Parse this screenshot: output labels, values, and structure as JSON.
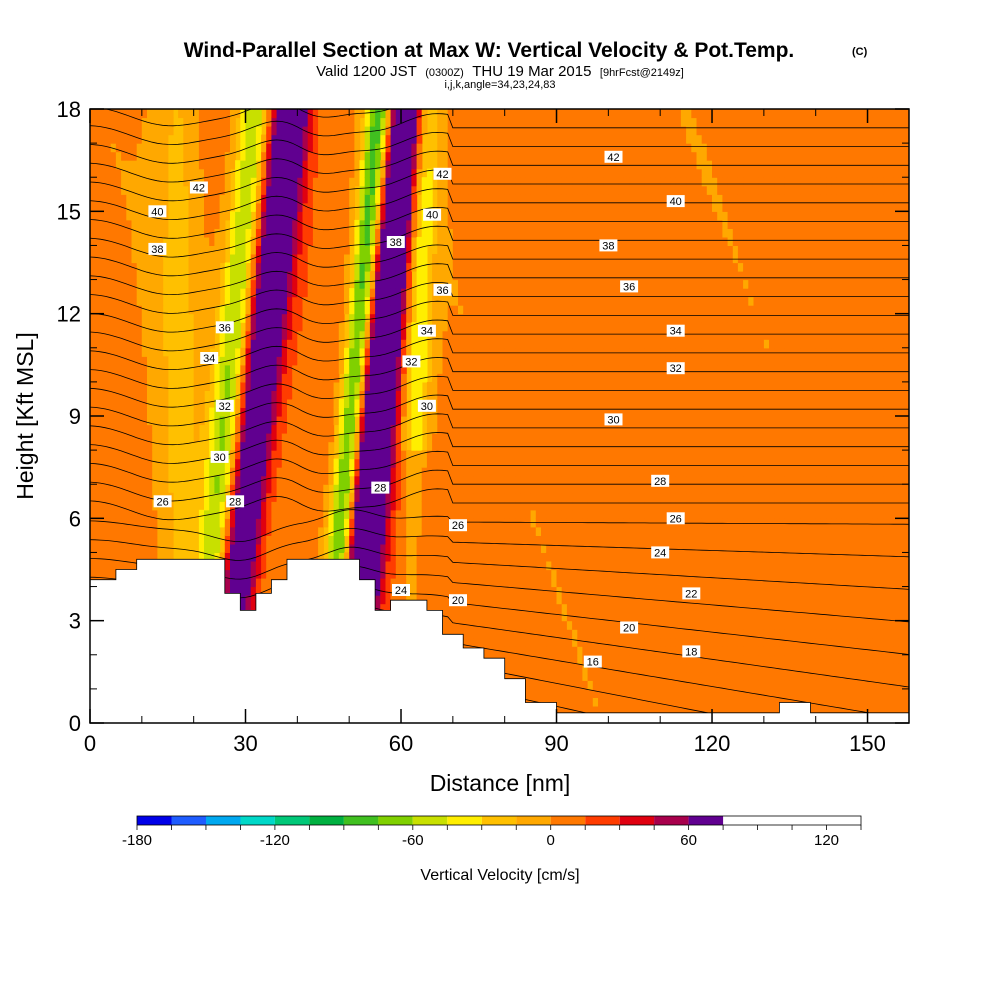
{
  "title": {
    "main": "Wind-Parallel Section at Max W: Vertical Velocity & Pot.Temp.",
    "copyright": "(C)",
    "valid_prefix": "Valid 1200 JST",
    "valid_z": "(0300Z)",
    "valid_date": "THU 19 Mar 2015",
    "forecast": "[9hrFcst@2149z]",
    "indices": "i,j,k,angle=34,23,24,83"
  },
  "chart_data": {
    "type": "heatmap",
    "xlabel": "Distance [nm]",
    "ylabel": "Height [Kft MSL]",
    "xlim": [
      0,
      158
    ],
    "ylim": [
      0,
      18
    ],
    "x_ticks": [
      0,
      30,
      60,
      90,
      120,
      150
    ],
    "y_ticks": [
      0,
      3,
      6,
      9,
      12,
      15,
      18
    ],
    "colorbar": {
      "title": "Vertical Velocity [cm/s]",
      "range": [
        -180,
        135
      ],
      "step": 15,
      "tick_labels": [
        "-180",
        "-120",
        "-60",
        "0",
        "60",
        "120"
      ],
      "tick_values": [
        -180,
        -120,
        -60,
        0,
        60,
        120
      ],
      "colors": [
        "#0000e8",
        "#1e5cff",
        "#00a8f0",
        "#00d8c8",
        "#00c878",
        "#00b040",
        "#40c020",
        "#80d000",
        "#c8e000",
        "#ffee00",
        "#ffc000",
        "#ffa800",
        "#ff7800",
        "#ff3c00",
        "#e00010",
        "#a8004c",
        "#600090"
      ]
    },
    "contour_labels": [
      {
        "x": 21,
        "y": 15.7,
        "text": "42"
      },
      {
        "x": 13,
        "y": 15.0,
        "text": "40"
      },
      {
        "x": 13,
        "y": 13.9,
        "text": "38"
      },
      {
        "x": 26,
        "y": 11.6,
        "text": "36"
      },
      {
        "x": 23,
        "y": 10.7,
        "text": "34"
      },
      {
        "x": 26,
        "y": 9.3,
        "text": "32"
      },
      {
        "x": 25,
        "y": 7.8,
        "text": "30"
      },
      {
        "x": 14,
        "y": 6.5,
        "text": "26"
      },
      {
        "x": 28,
        "y": 6.5,
        "text": "28"
      },
      {
        "x": 68,
        "y": 16.1,
        "text": "42"
      },
      {
        "x": 66,
        "y": 14.9,
        "text": "40"
      },
      {
        "x": 59,
        "y": 14.1,
        "text": "38"
      },
      {
        "x": 68,
        "y": 12.7,
        "text": "36"
      },
      {
        "x": 65,
        "y": 11.5,
        "text": "34"
      },
      {
        "x": 62,
        "y": 10.6,
        "text": "32"
      },
      {
        "x": 65,
        "y": 9.3,
        "text": "30"
      },
      {
        "x": 56,
        "y": 6.9,
        "text": "28"
      },
      {
        "x": 71,
        "y": 5.8,
        "text": "26"
      },
      {
        "x": 60,
        "y": 3.9,
        "text": "24"
      },
      {
        "x": 71,
        "y": 3.6,
        "text": "20"
      },
      {
        "x": 101,
        "y": 16.6,
        "text": "42"
      },
      {
        "x": 113,
        "y": 15.3,
        "text": "40"
      },
      {
        "x": 100,
        "y": 14.0,
        "text": "38"
      },
      {
        "x": 104,
        "y": 12.8,
        "text": "36"
      },
      {
        "x": 113,
        "y": 11.5,
        "text": "34"
      },
      {
        "x": 113,
        "y": 10.4,
        "text": "32"
      },
      {
        "x": 101,
        "y": 8.9,
        "text": "30"
      },
      {
        "x": 110,
        "y": 7.1,
        "text": "28"
      },
      {
        "x": 113,
        "y": 6.0,
        "text": "26"
      },
      {
        "x": 110,
        "y": 5.0,
        "text": "24"
      },
      {
        "x": 116,
        "y": 3.8,
        "text": "22"
      },
      {
        "x": 104,
        "y": 2.8,
        "text": "20"
      },
      {
        "x": 116,
        "y": 2.1,
        "text": "18"
      },
      {
        "x": 97,
        "y": 1.8,
        "text": "16"
      }
    ]
  }
}
